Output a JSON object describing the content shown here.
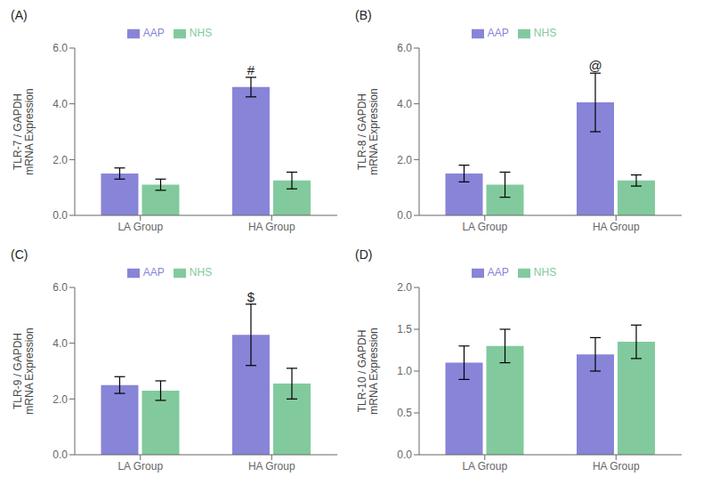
{
  "chart_data": [
    {
      "type": "bar",
      "title": "(A)",
      "y_label": "TLR-7 / GAPDH\nmRNA Expression",
      "categories": [
        "LA Group",
        "HA Group"
      ],
      "series": [
        {
          "name": "AAP",
          "color": "#8884d8",
          "values": [
            1.5,
            4.6
          ],
          "errors": [
            0.2,
            0.35
          ]
        },
        {
          "name": "NHS",
          "color": "#82ca9d",
          "values": [
            1.1,
            1.25
          ],
          "errors": [
            0.2,
            0.3
          ]
        }
      ],
      "ylim": [
        0,
        6.0
      ],
      "yticks": [
        {
          "value": 0.0,
          "label": "0.0"
        },
        {
          "value": 2.0,
          "label": "2.0"
        },
        {
          "value": 4.0,
          "label": "4.0"
        },
        {
          "value": 6.0,
          "label": "6.0"
        }
      ],
      "annotations": [
        {
          "text": "#",
          "category": "HA Group",
          "series": "AAP"
        }
      ],
      "grid": false,
      "legend": "top"
    },
    {
      "type": "bar",
      "title": "(B)",
      "y_label": "TLR-8 / GAPDH\nmRNA Expression",
      "categories": [
        "LA Group",
        "HA Group"
      ],
      "series": [
        {
          "name": "AAP",
          "color": "#8884d8",
          "values": [
            1.5,
            4.05
          ],
          "errors": [
            0.3,
            1.05
          ]
        },
        {
          "name": "NHS",
          "color": "#82ca9d",
          "values": [
            1.1,
            1.25
          ],
          "errors": [
            0.45,
            0.2
          ]
        }
      ],
      "ylim": [
        0,
        6.0
      ],
      "yticks": [
        {
          "value": 0.0,
          "label": "0.0"
        },
        {
          "value": 2.0,
          "label": "2.0"
        },
        {
          "value": 4.0,
          "label": "4.0"
        },
        {
          "value": 6.0,
          "label": "6.0"
        }
      ],
      "annotations": [
        {
          "text": "@",
          "category": "HA Group",
          "series": "AAP"
        }
      ],
      "grid": false,
      "legend": "top"
    },
    {
      "type": "bar",
      "title": "(C)",
      "y_label": "TLR-9 / GAPDH\nmRNA Expression",
      "categories": [
        "LA Group",
        "HA Group"
      ],
      "series": [
        {
          "name": "AAP",
          "color": "#8884d8",
          "values": [
            2.5,
            4.3
          ],
          "errors": [
            0.3,
            1.1
          ]
        },
        {
          "name": "NHS",
          "color": "#82ca9d",
          "values": [
            2.3,
            2.55
          ],
          "errors": [
            0.35,
            0.55
          ]
        }
      ],
      "ylim": [
        0,
        6.0
      ],
      "yticks": [
        {
          "value": 0.0,
          "label": "0.0"
        },
        {
          "value": 2.0,
          "label": "2.0"
        },
        {
          "value": 4.0,
          "label": "4.0"
        },
        {
          "value": 6.0,
          "label": "6.0"
        }
      ],
      "annotations": [
        {
          "text": "$",
          "category": "HA Group",
          "series": "AAP"
        }
      ],
      "grid": false,
      "legend": "top"
    },
    {
      "type": "bar",
      "title": "(D)",
      "y_label": "TLR-10 / GAPDH\nmRNA Expression",
      "categories": [
        "LA Group",
        "HA Group"
      ],
      "series": [
        {
          "name": "AAP",
          "color": "#8884d8",
          "values": [
            1.1,
            1.2
          ],
          "errors": [
            0.2,
            0.2
          ]
        },
        {
          "name": "NHS",
          "color": "#82ca9d",
          "values": [
            1.3,
            1.35
          ],
          "errors": [
            0.2,
            0.2
          ]
        }
      ],
      "ylim": [
        0,
        2.0
      ],
      "yticks": [
        {
          "value": 0.0,
          "label": "0.0"
        },
        {
          "value": 0.5,
          "label": "0.5"
        },
        {
          "value": 1.0,
          "label": "1.0"
        },
        {
          "value": 1.5,
          "label": "1.5"
        },
        {
          "value": 2.0,
          "label": "2.0"
        }
      ],
      "annotations": [],
      "grid": false,
      "legend": "top"
    }
  ]
}
